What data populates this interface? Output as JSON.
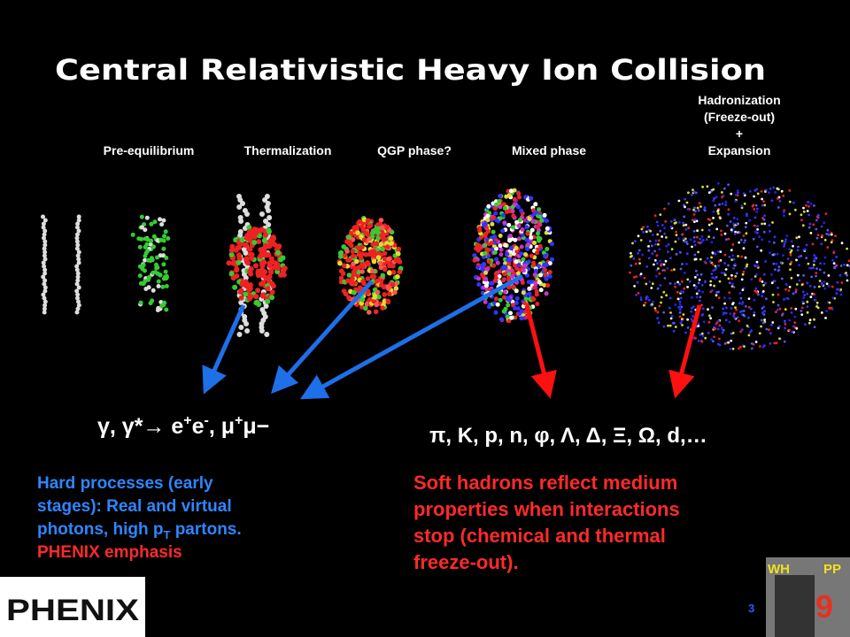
{
  "title": "Central Relativistic Heavy Ion Collision",
  "stages": [
    {
      "lines": [
        "Pre-equilibrium"
      ]
    },
    {
      "lines": [
        "Thermalization"
      ]
    },
    {
      "lines": [
        "QGP phase?"
      ]
    },
    {
      "lines": [
        "Mixed phase"
      ]
    },
    {
      "lines": [
        "Hadronization",
        "(Freeze-out)",
        "+",
        "Expansion"
      ]
    }
  ],
  "photon_formula": [
    {
      "text": "γ, γ*→ e",
      "style": "base"
    },
    {
      "text": "+",
      "style": "sup"
    },
    {
      "text": "e",
      "style": "base"
    },
    {
      "text": "-",
      "style": "sup"
    },
    {
      "text": ", μ",
      "style": "base"
    },
    {
      "text": "+",
      "style": "sup"
    },
    {
      "text": "μ−",
      "style": "base"
    }
  ],
  "hadron_formula": "π, K, p, n, φ, Λ, Δ, Ξ, Ω, d,…",
  "hard_text": [
    [
      {
        "text": "Hard processes (early",
        "style": "base"
      }
    ],
    [
      {
        "text": "stages): Real and virtual",
        "style": "base"
      }
    ],
    [
      {
        "text": "photons, high p",
        "style": "base"
      },
      {
        "text": "T",
        "style": "sub"
      },
      {
        "text": " partons.",
        "style": "base"
      }
    ],
    [
      {
        "text": "PHENIX emphasis",
        "style": "red"
      }
    ]
  ],
  "soft_text": [
    "Soft hadrons reflect medium",
    "properties when interactions",
    "stop (chemical and thermal",
    "freeze-out)."
  ],
  "page_number": "3",
  "logo_left": "PHENIX",
  "logo_right": [
    "WH",
    "PP",
    "9"
  ]
}
